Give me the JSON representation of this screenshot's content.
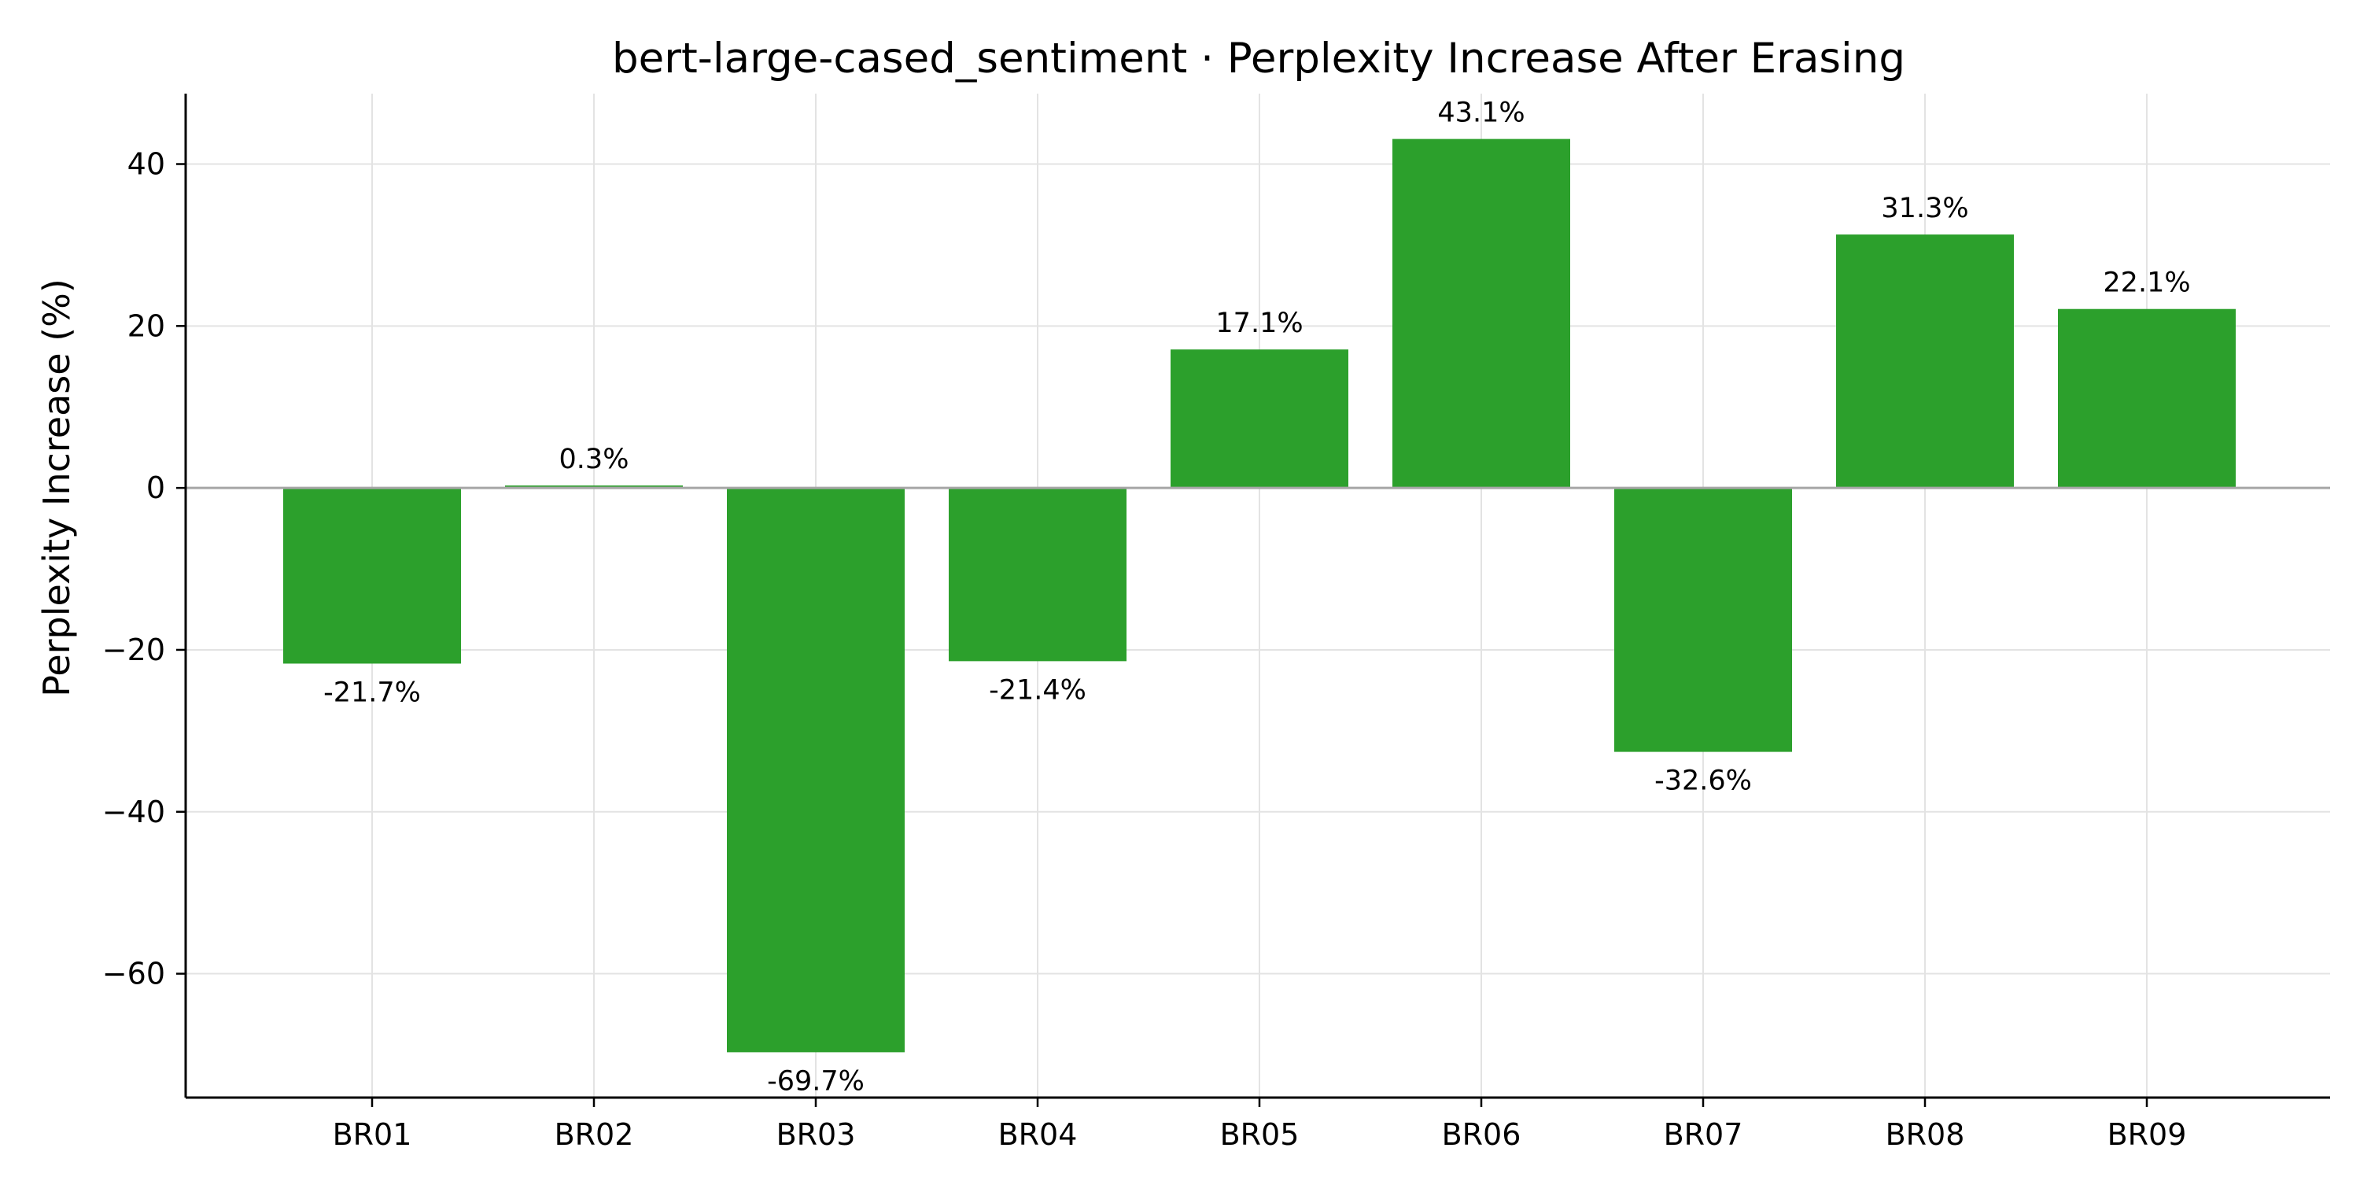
{
  "chart_data": {
    "type": "bar",
    "title": "bert-large-cased_sentiment · Perplexity Increase After Erasing",
    "xlabel": "",
    "ylabel": "Perplexity Increase (%)",
    "categories": [
      "BR01",
      "BR02",
      "BR03",
      "BR04",
      "BR05",
      "BR06",
      "BR07",
      "BR08",
      "BR09"
    ],
    "values": [
      -21.7,
      0.3,
      -69.7,
      -21.4,
      17.1,
      43.1,
      -32.6,
      31.3,
      22.1
    ],
    "data_labels": [
      "-21.7%",
      "0.3%",
      "-69.7%",
      "-21.4%",
      "17.1%",
      "43.1%",
      "-32.6%",
      "31.3%",
      "22.1%"
    ],
    "ylim": [
      -75.3,
      48.7
    ],
    "yticks": [
      40,
      20,
      0,
      -20,
      -40,
      -60
    ],
    "ytick_labels": [
      "40",
      "20",
      "0",
      "−20",
      "−40",
      "−60"
    ],
    "grid": true,
    "zero_line": true,
    "bar_color": "#2ca02c"
  }
}
